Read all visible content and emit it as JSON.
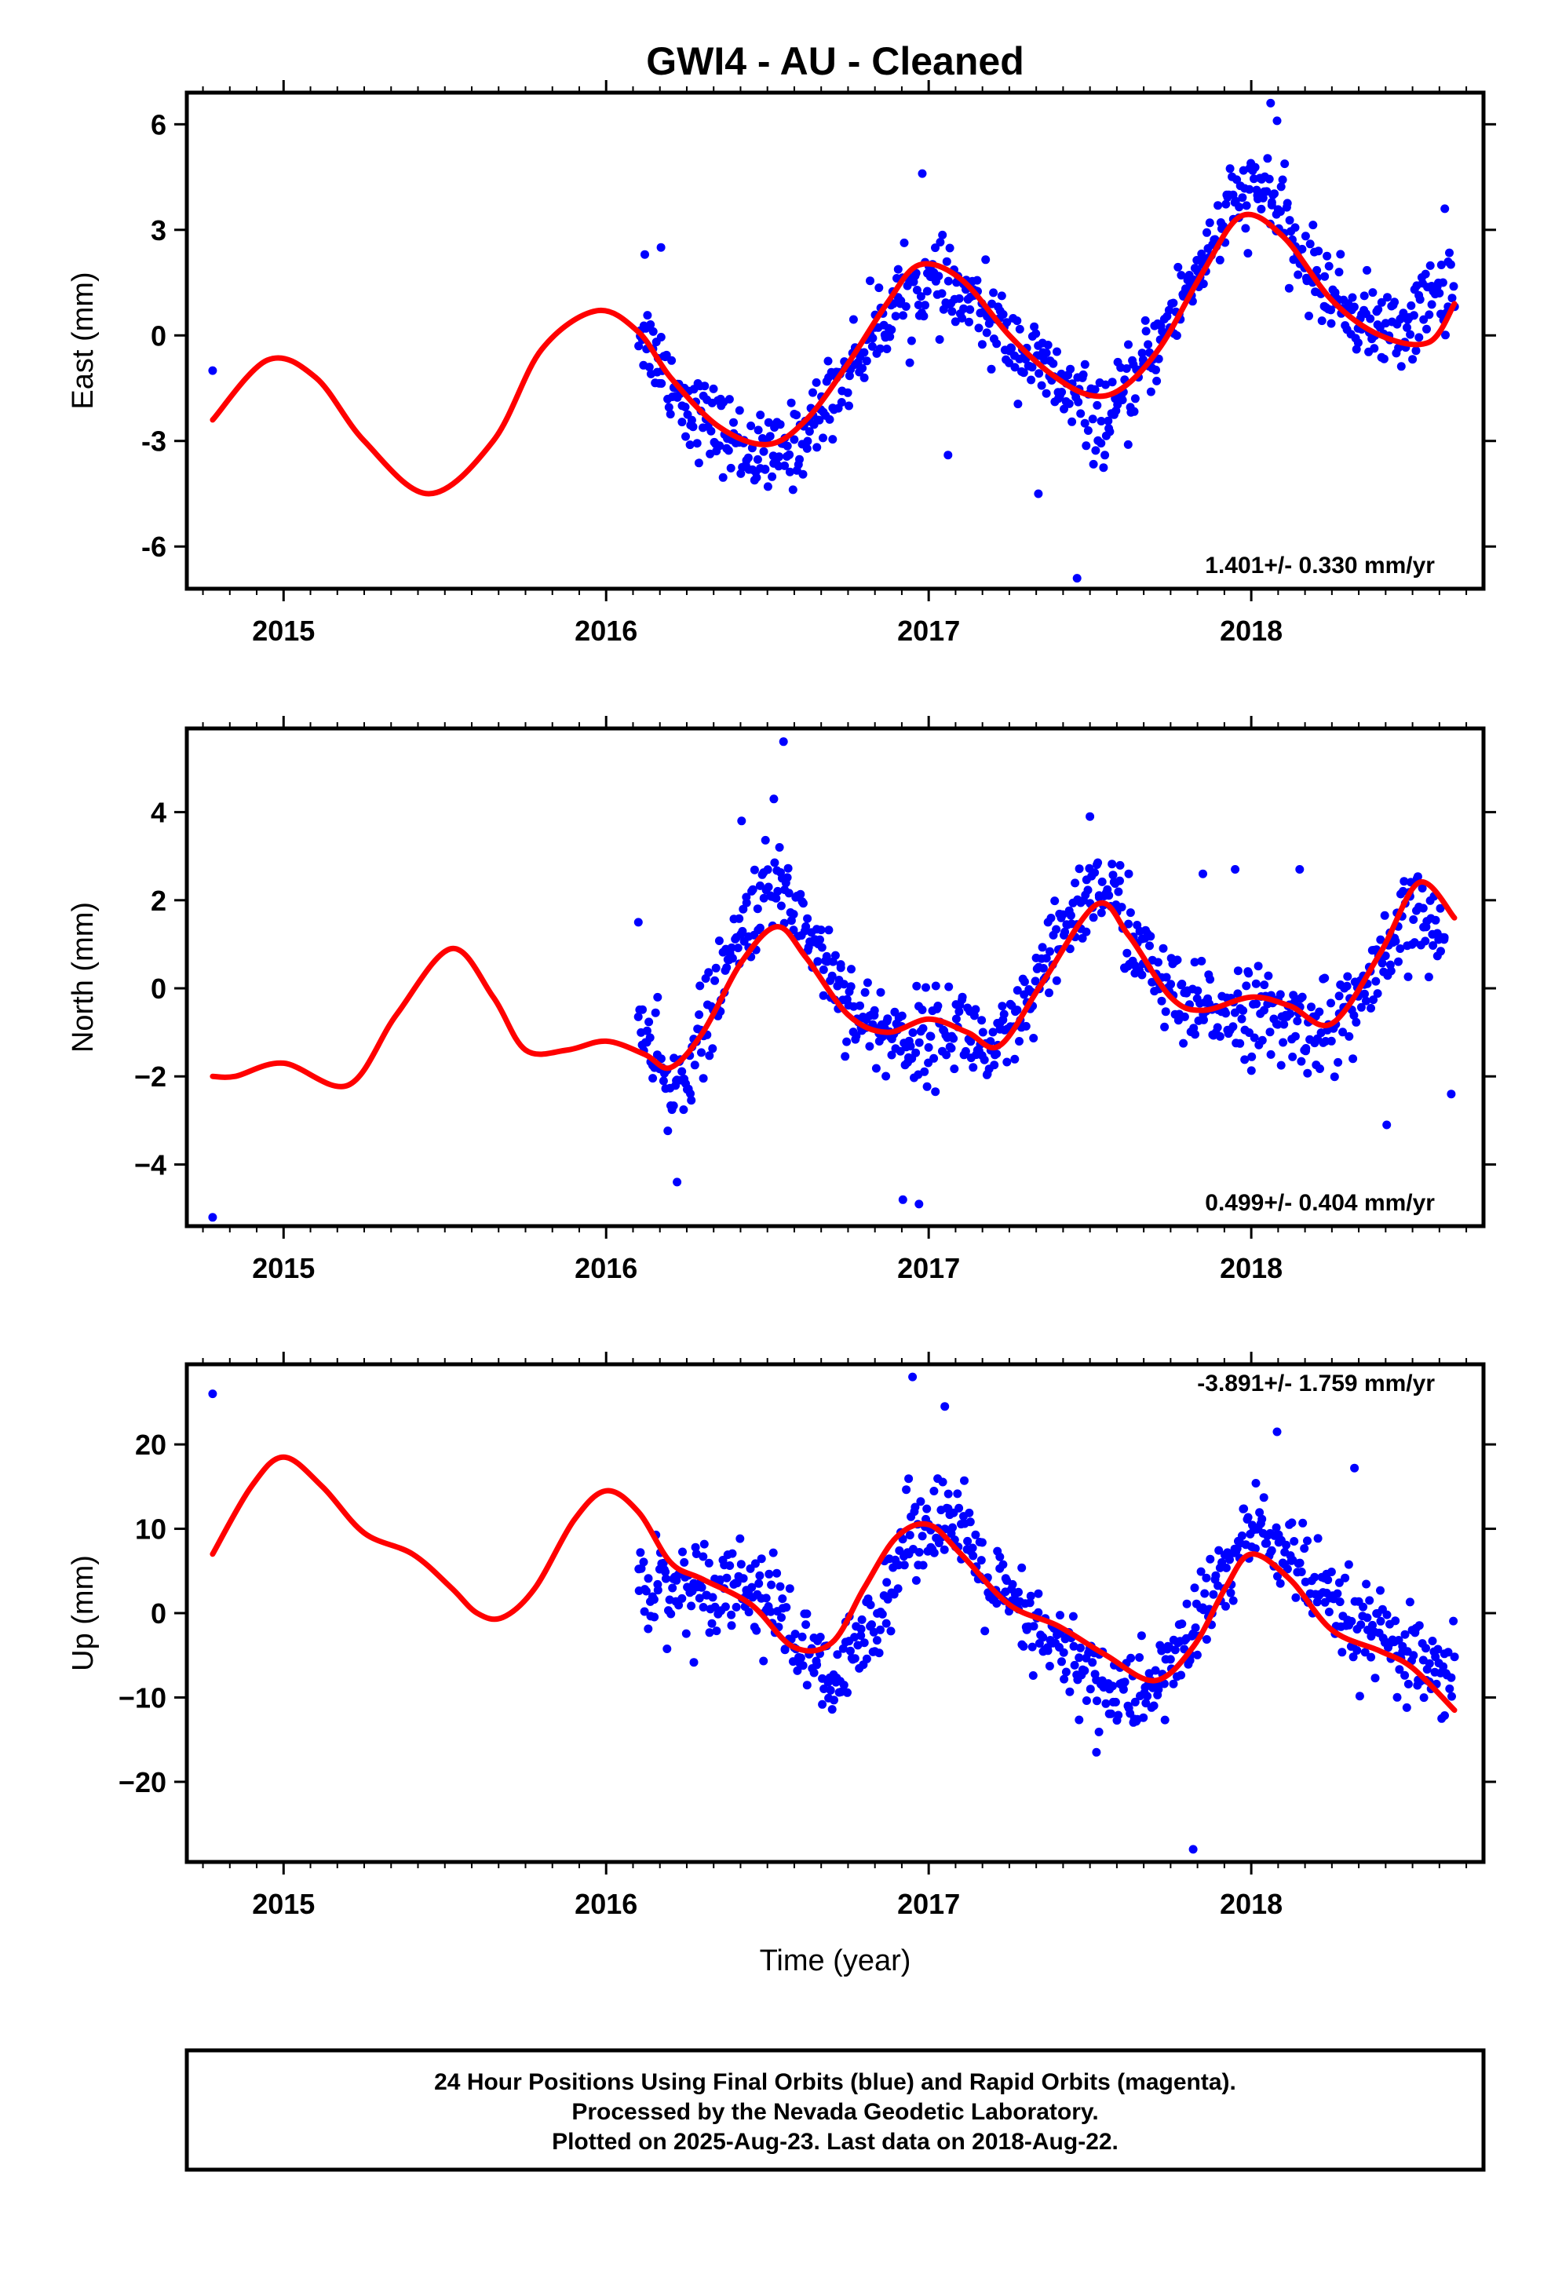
{
  "title": "GWI4  - AU - Cleaned",
  "xlabel": "Time (year)",
  "footer": {
    "line1": "24 Hour Positions Using Final Orbits (blue) and Rapid Orbits (magenta).",
    "line2": "Processed by the Nevada Geodetic Laboratory.",
    "line3": "Plotted on 2025-Aug-23. Last data on 2018-Aug-22."
  },
  "colors": {
    "points": "#0000ff",
    "model": "#ff0000",
    "frame": "#000000"
  },
  "chart_data": [
    {
      "type": "scatter",
      "ylabel": "East (mm)",
      "rate_label": "1.401+/- 0.330 mm/yr",
      "xlim": [
        2014.7,
        2018.72
      ],
      "ylim": [
        -7.2,
        6.9
      ],
      "x_ticks": [
        2015,
        2016,
        2017,
        2018
      ],
      "y_ticks": [
        -6,
        -3,
        0,
        3,
        6
      ],
      "y_tick_labels": [
        "-6",
        "-3",
        "0",
        "3",
        "6"
      ],
      "grid": false,
      "model_curve": {
        "name": "model",
        "x": [
          2014.78,
          2014.95,
          2015.1,
          2015.25,
          2015.45,
          2015.65,
          2015.8,
          2015.97,
          2016.1,
          2016.2,
          2016.35,
          2016.5,
          2016.62,
          2016.75,
          2016.87,
          2016.97,
          2017.1,
          2017.25,
          2017.38,
          2017.5,
          2017.6,
          2017.72,
          2017.85,
          2017.97,
          2018.1,
          2018.25,
          2018.4,
          2018.55,
          2018.63
        ],
        "y": [
          -2.4,
          -0.7,
          -1.2,
          -3.0,
          -4.5,
          -3.0,
          -0.4,
          0.7,
          0.1,
          -1.2,
          -2.6,
          -3.1,
          -2.4,
          -0.8,
          0.9,
          2.0,
          1.6,
          0.0,
          -1.1,
          -1.7,
          -1.5,
          -0.3,
          1.8,
          3.4,
          2.8,
          1.0,
          0.0,
          -0.2,
          0.9
        ]
      },
      "scatter_trend": {
        "x": [
          2016.1,
          2016.25,
          2016.4,
          2016.5,
          2016.6,
          2016.75,
          2016.9,
          2017.0,
          2017.15,
          2017.3,
          2017.45,
          2017.55,
          2017.65,
          2017.8,
          2017.95,
          2018.05,
          2018.15,
          2018.3,
          2018.45,
          2018.55,
          2018.63
        ],
        "y": [
          0.3,
          -2.0,
          -3.0,
          -3.6,
          -3.0,
          -1.0,
          1.0,
          1.5,
          0.8,
          -0.5,
          -1.8,
          -2.6,
          -1.2,
          1.3,
          3.8,
          4.2,
          2.2,
          0.7,
          0.0,
          1.0,
          1.6
        ]
      },
      "scatter_spread": 0.95,
      "scatter_n": 700,
      "outliers": [
        [
          2014.78,
          -1.0
        ],
        [
          2016.12,
          2.3
        ],
        [
          2016.17,
          2.5
        ],
        [
          2016.98,
          4.6
        ],
        [
          2017.06,
          -3.4
        ],
        [
          2017.34,
          -4.5
        ],
        [
          2017.46,
          -6.9
        ],
        [
          2018.06,
          6.6
        ],
        [
          2018.08,
          6.1
        ],
        [
          2018.6,
          3.6
        ]
      ]
    },
    {
      "type": "scatter",
      "ylabel": "North (mm)",
      "rate_label": "0.499+/- 0.404 mm/yr",
      "xlim": [
        2014.7,
        2018.72
      ],
      "ylim": [
        -5.4,
        5.9
      ],
      "x_ticks": [
        2015,
        2016,
        2017,
        2018
      ],
      "y_ticks": [
        -4,
        -2,
        0,
        2,
        4
      ],
      "y_tick_labels": [
        "−4",
        "−2",
        "0",
        "2",
        "4"
      ],
      "grid": false,
      "model_curve": {
        "name": "model",
        "x": [
          2014.78,
          2014.85,
          2015.0,
          2015.2,
          2015.35,
          2015.52,
          2015.65,
          2015.75,
          2015.88,
          2016.0,
          2016.12,
          2016.2,
          2016.3,
          2016.42,
          2016.53,
          2016.62,
          2016.75,
          2016.87,
          2017.0,
          2017.12,
          2017.22,
          2017.35,
          2017.52,
          2017.62,
          2017.75,
          2017.85,
          2018.0,
          2018.12,
          2018.25,
          2018.4,
          2018.52,
          2018.63
        ],
        "y": [
          -2.0,
          -2.0,
          -1.7,
          -2.2,
          -0.6,
          0.9,
          -0.2,
          -1.4,
          -1.4,
          -1.2,
          -1.5,
          -1.8,
          -1.0,
          0.6,
          1.4,
          0.7,
          -0.6,
          -1.0,
          -0.7,
          -1.0,
          -1.3,
          0.1,
          1.9,
          1.2,
          -0.2,
          -0.5,
          -0.2,
          -0.4,
          -0.8,
          0.8,
          2.4,
          1.6
        ]
      },
      "scatter_trend": {
        "x": [
          2016.1,
          2016.2,
          2016.3,
          2016.45,
          2016.55,
          2016.65,
          2016.8,
          2016.95,
          2017.1,
          2017.2,
          2017.3,
          2017.45,
          2017.55,
          2017.65,
          2017.8,
          2017.95,
          2018.1,
          2018.25,
          2018.4,
          2018.5,
          2018.6
        ],
        "y": [
          -0.8,
          -2.5,
          -1.0,
          1.8,
          2.4,
          1.0,
          -0.8,
          -1.2,
          -0.8,
          -1.6,
          -0.6,
          1.8,
          2.4,
          0.8,
          -0.6,
          -0.4,
          -0.8,
          -0.9,
          0.3,
          1.8,
          1.0
        ]
      },
      "scatter_spread": 0.85,
      "scatter_n": 700,
      "outliers": [
        [
          2014.78,
          -5.2
        ],
        [
          2016.1,
          1.5
        ],
        [
          2016.22,
          -4.4
        ],
        [
          2016.42,
          3.8
        ],
        [
          2016.52,
          4.3
        ],
        [
          2016.55,
          5.6
        ],
        [
          2016.92,
          -4.8
        ],
        [
          2016.97,
          -4.9
        ],
        [
          2017.5,
          3.9
        ],
        [
          2017.62,
          2.6
        ],
        [
          2017.85,
          2.6
        ],
        [
          2017.95,
          2.7
        ],
        [
          2018.15,
          2.7
        ],
        [
          2018.42,
          -3.1
        ],
        [
          2018.62,
          -2.4
        ]
      ]
    },
    {
      "type": "scatter",
      "ylabel": "Up (mm)",
      "rate_label": "-3.891+/- 1.759 mm/yr",
      "xlim": [
        2014.7,
        2018.72
      ],
      "ylim": [
        -29.5,
        29.5
      ],
      "x_ticks": [
        2015,
        2016,
        2017,
        2018
      ],
      "y_ticks": [
        -20,
        -10,
        0,
        10,
        20
      ],
      "y_tick_labels": [
        "−20",
        "−10",
        "0",
        "10",
        "20"
      ],
      "grid": false,
      "model_curve": {
        "name": "model",
        "x": [
          2014.78,
          2014.9,
          2015.0,
          2015.12,
          2015.25,
          2015.4,
          2015.52,
          2015.6,
          2015.68,
          2015.78,
          2015.9,
          2016.0,
          2016.1,
          2016.2,
          2016.3,
          2016.45,
          2016.58,
          2016.7,
          2016.8,
          2016.9,
          2017.0,
          2017.1,
          2017.25,
          2017.4,
          2017.55,
          2017.7,
          2017.82,
          2017.92,
          2018.0,
          2018.12,
          2018.25,
          2018.4,
          2018.5,
          2018.63
        ],
        "y": [
          7.0,
          15.0,
          18.5,
          15.0,
          9.5,
          7.0,
          3.0,
          0.0,
          -0.5,
          3.0,
          11.0,
          14.5,
          12.0,
          6.0,
          4.0,
          1.0,
          -4.0,
          -3.5,
          3.0,
          9.0,
          10.5,
          7.0,
          1.0,
          -1.5,
          -5.0,
          -8.0,
          -4.0,
          3.0,
          7.0,
          4.0,
          -2.0,
          -4.5,
          -6.5,
          -11.5
        ]
      },
      "scatter_trend": {
        "x": [
          2016.1,
          2016.25,
          2016.4,
          2016.5,
          2016.6,
          2016.7,
          2016.8,
          2016.95,
          2017.05,
          2017.2,
          2017.35,
          2017.5,
          2017.6,
          2017.7,
          2017.85,
          2018.0,
          2018.1,
          2018.25,
          2018.4,
          2018.5,
          2018.63
        ],
        "y": [
          4.0,
          3.0,
          4.0,
          2.0,
          -4.0,
          -9.0,
          -3.0,
          10.0,
          12.0,
          3.0,
          -3.0,
          -7.0,
          -10.0,
          -9.0,
          0.0,
          10.0,
          8.0,
          0.0,
          -3.0,
          -6.0,
          -9.5
        ]
      },
      "scatter_spread": 4.5,
      "scatter_n": 700,
      "outliers": [
        [
          2014.78,
          26.0
        ],
        [
          2016.95,
          28.0
        ],
        [
          2017.05,
          24.5
        ],
        [
          2017.82,
          -28.0
        ],
        [
          2018.08,
          21.5
        ],
        [
          2018.32,
          17.2
        ],
        [
          2017.52,
          -16.5
        ]
      ]
    }
  ]
}
